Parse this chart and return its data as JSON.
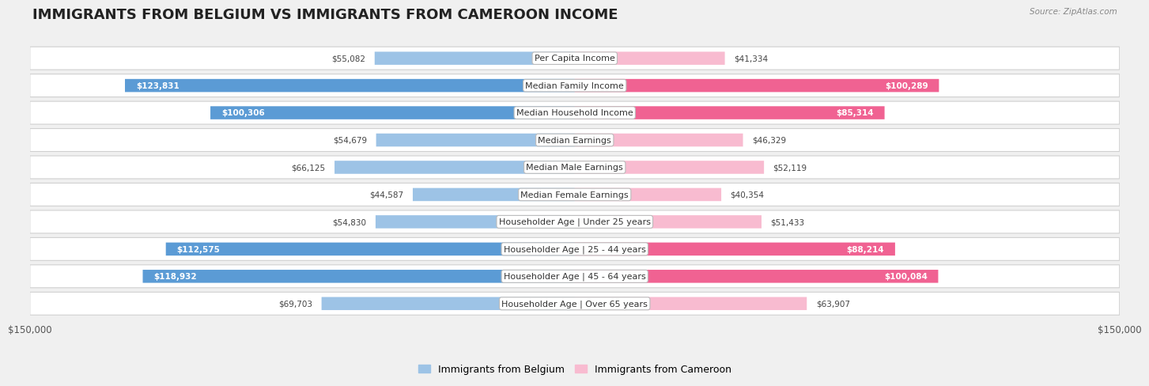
{
  "title": "IMMIGRANTS FROM BELGIUM VS IMMIGRANTS FROM CAMEROON INCOME",
  "source": "Source: ZipAtlas.com",
  "categories": [
    "Per Capita Income",
    "Median Family Income",
    "Median Household Income",
    "Median Earnings",
    "Median Male Earnings",
    "Median Female Earnings",
    "Householder Age | Under 25 years",
    "Householder Age | 25 - 44 years",
    "Householder Age | 45 - 64 years",
    "Householder Age | Over 65 years"
  ],
  "belgium_values": [
    55082,
    123831,
    100306,
    54679,
    66125,
    44587,
    54830,
    112575,
    118932,
    69703
  ],
  "cameroon_values": [
    41334,
    100289,
    85314,
    46329,
    52119,
    40354,
    51433,
    88214,
    100084,
    63907
  ],
  "belgium_color_dark": "#5b9bd5",
  "belgium_color_light": "#9dc3e6",
  "cameroon_color_dark": "#f06292",
  "cameroon_color_light": "#f8bbd0",
  "belgium_label": "Immigrants from Belgium",
  "cameroon_label": "Immigrants from Cameroon",
  "max_value": 150000,
  "bg_color": "#f0f0f0",
  "row_bg": "#ffffff",
  "row_border": "#d0d0d0",
  "title_fontsize": 13,
  "label_fontsize": 8,
  "value_fontsize": 7.5,
  "axis_label": "$150,000",
  "dark_threshold": 70000
}
